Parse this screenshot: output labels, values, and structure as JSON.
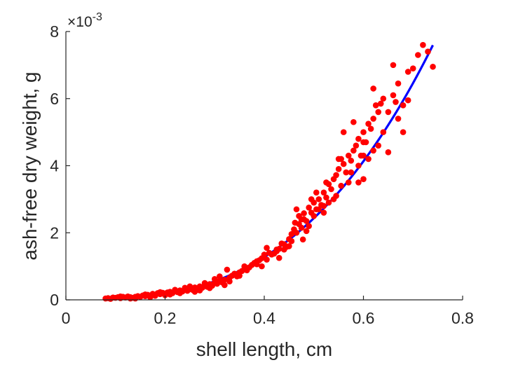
{
  "chart_data": {
    "type": "scatter",
    "title": "",
    "xlabel": "shell length, cm",
    "ylabel": "ash-free dry weight, g",
    "y_multiplier_base": "×10",
    "y_multiplier_exp": "-3",
    "xlim": [
      0,
      0.8
    ],
    "ylim": [
      0,
      0.008
    ],
    "xticks": [
      0,
      0.2,
      0.4,
      0.6,
      0.8
    ],
    "xtick_labels": [
      "0",
      "0.2",
      "0.4",
      "0.6",
      "0.8"
    ],
    "yticks": [
      0,
      0.002,
      0.004,
      0.006,
      0.008
    ],
    "ytick_labels": [
      "0",
      "2",
      "4",
      "6",
      "8"
    ],
    "grid": false,
    "legend": "none",
    "colors": {
      "points": "#ff0000",
      "fit": "#0000ff",
      "axis": "#262626"
    },
    "fit": {
      "type": "power",
      "formula": "y = a * x^b",
      "a": 0.01818,
      "b": 2.9,
      "x_range": [
        0.08,
        0.74
      ]
    },
    "points": [
      [
        0.08,
        4e-05
      ],
      [
        0.085,
        5e-05
      ],
      [
        0.09,
        3e-05
      ],
      [
        0.095,
        7e-05
      ],
      [
        0.1,
        6e-05
      ],
      [
        0.105,
        8e-05
      ],
      [
        0.11,
        5e-05
      ],
      [
        0.115,
        9e-05
      ],
      [
        0.12,
        7e-05
      ],
      [
        0.125,
        0.0001
      ],
      [
        0.13,
        8e-05
      ],
      [
        0.135,
        6e-05
      ],
      [
        0.14,
        4e-05
      ],
      [
        0.145,
        0.00011
      ],
      [
        0.15,
        9e-05
      ],
      [
        0.155,
        0.00013
      ],
      [
        0.16,
        0.00011
      ],
      [
        0.165,
        0.00015
      ],
      [
        0.17,
        0.00012
      ],
      [
        0.175,
        0.00018
      ],
      [
        0.18,
        0.00014
      ],
      [
        0.185,
        0.0002
      ],
      [
        0.19,
        0.00017
      ],
      [
        0.195,
        0.00021
      ],
      [
        0.2,
        0.00019
      ],
      [
        0.205,
        0.00022
      ],
      [
        0.21,
        0.00024
      ],
      [
        0.215,
        0.0002
      ],
      [
        0.22,
        0.00026
      ],
      [
        0.225,
        0.00023
      ],
      [
        0.23,
        0.00028
      ],
      [
        0.235,
        0.00025
      ],
      [
        0.24,
        0.00031
      ],
      [
        0.245,
        0.00027
      ],
      [
        0.25,
        0.00034
      ],
      [
        0.255,
        0.0003
      ],
      [
        0.26,
        0.00037
      ],
      [
        0.265,
        0.00033
      ],
      [
        0.27,
        0.0004
      ],
      [
        0.275,
        0.00036
      ],
      [
        0.28,
        0.00043
      ],
      [
        0.285,
        0.00039
      ],
      [
        0.29,
        0.00047
      ],
      [
        0.295,
        0.00042
      ],
      [
        0.3,
        0.00051
      ],
      [
        0.305,
        0.00048
      ],
      [
        0.31,
        0.00056
      ],
      [
        0.315,
        0.00052
      ],
      [
        0.32,
        0.0006
      ],
      [
        0.325,
        0.0009
      ],
      [
        0.33,
        0.00066
      ],
      [
        0.335,
        0.00072
      ],
      [
        0.34,
        0.00078
      ],
      [
        0.345,
        0.0007
      ],
      [
        0.35,
        0.00082
      ],
      [
        0.355,
        0.00086
      ],
      [
        0.36,
        0.00092
      ],
      [
        0.365,
        0.00088
      ],
      [
        0.37,
        0.00097
      ],
      [
        0.375,
        0.00104
      ],
      [
        0.38,
        0.0011
      ],
      [
        0.385,
        0.00106
      ],
      [
        0.39,
        0.00118
      ],
      [
        0.395,
        0.00124
      ],
      [
        0.4,
        0.00135
      ],
      [
        0.405,
        0.00155
      ],
      [
        0.41,
        0.0014
      ],
      [
        0.42,
        0.00138
      ],
      [
        0.425,
        0.0015
      ],
      [
        0.43,
        0.00152
      ],
      [
        0.44,
        0.00166
      ],
      [
        0.445,
        0.00158
      ],
      [
        0.45,
        0.00181
      ],
      [
        0.455,
        0.00196
      ],
      [
        0.46,
        0.0021
      ],
      [
        0.462,
        0.0023
      ],
      [
        0.465,
        0.002
      ],
      [
        0.47,
        0.00226
      ],
      [
        0.475,
        0.0024
      ],
      [
        0.478,
        0.0018
      ],
      [
        0.48,
        0.00258
      ],
      [
        0.485,
        0.00235
      ],
      [
        0.49,
        0.00275
      ],
      [
        0.495,
        0.0026
      ],
      [
        0.5,
        0.0029
      ],
      [
        0.505,
        0.0027
      ],
      [
        0.51,
        0.003
      ],
      [
        0.515,
        0.00283
      ],
      [
        0.52,
        0.0032
      ],
      [
        0.525,
        0.00305
      ],
      [
        0.53,
        0.00345
      ],
      [
        0.535,
        0.0033
      ],
      [
        0.54,
        0.0036
      ],
      [
        0.545,
        0.00372
      ],
      [
        0.55,
        0.0039
      ],
      [
        0.555,
        0.0034
      ],
      [
        0.56,
        0.00405
      ],
      [
        0.565,
        0.0038
      ],
      [
        0.57,
        0.0043
      ],
      [
        0.575,
        0.00415
      ],
      [
        0.58,
        0.00445
      ],
      [
        0.585,
        0.0046
      ],
      [
        0.59,
        0.0048
      ],
      [
        0.595,
        0.0043
      ],
      [
        0.6,
        0.005
      ],
      [
        0.605,
        0.0047
      ],
      [
        0.61,
        0.00525
      ],
      [
        0.615,
        0.0051
      ],
      [
        0.62,
        0.0054
      ],
      [
        0.625,
        0.0058
      ],
      [
        0.63,
        0.0056
      ],
      [
        0.635,
        0.00585
      ],
      [
        0.64,
        0.006
      ],
      [
        0.65,
        0.0056
      ],
      [
        0.66,
        0.0061
      ],
      [
        0.665,
        0.0059
      ],
      [
        0.67,
        0.00645
      ],
      [
        0.68,
        0.005
      ],
      [
        0.69,
        0.0068
      ],
      [
        0.7,
        0.0069
      ],
      [
        0.71,
        0.0073
      ],
      [
        0.72,
        0.0076
      ],
      [
        0.73,
        0.0074
      ],
      [
        0.74,
        0.00695
      ],
      [
        0.62,
        0.0063
      ],
      [
        0.6,
        0.0047
      ],
      [
        0.575,
        0.0038
      ],
      [
        0.53,
        0.0029
      ],
      [
        0.51,
        0.0027
      ],
      [
        0.49,
        0.0022
      ],
      [
        0.47,
        0.0025
      ],
      [
        0.45,
        0.0016
      ],
      [
        0.43,
        0.00125
      ],
      [
        0.415,
        0.00135
      ],
      [
        0.395,
        0.001
      ],
      [
        0.36,
        0.001
      ],
      [
        0.33,
        0.00055
      ],
      [
        0.31,
        0.0007
      ],
      [
        0.29,
        0.00035
      ],
      [
        0.27,
        0.00028
      ],
      [
        0.25,
        0.0004
      ],
      [
        0.23,
        0.0002
      ],
      [
        0.21,
        0.00016
      ],
      [
        0.19,
        0.00023
      ],
      [
        0.17,
        8e-05
      ],
      [
        0.13,
        4e-05
      ],
      [
        0.11,
        0.0001
      ],
      [
        0.6,
        0.0036
      ],
      [
        0.62,
        0.00445
      ],
      [
        0.64,
        0.005
      ],
      [
        0.66,
        0.007
      ],
      [
        0.68,
        0.0058
      ],
      [
        0.69,
        0.00595
      ],
      [
        0.56,
        0.005
      ],
      [
        0.545,
        0.0031
      ],
      [
        0.52,
        0.0026
      ],
      [
        0.505,
        0.0032
      ],
      [
        0.485,
        0.00205
      ],
      [
        0.465,
        0.0027
      ],
      [
        0.44,
        0.0015
      ],
      [
        0.425,
        0.00145
      ],
      [
        0.405,
        0.0012
      ],
      [
        0.385,
        0.00115
      ],
      [
        0.35,
        0.00072
      ],
      [
        0.32,
        0.00044
      ],
      [
        0.3,
        0.00062
      ],
      [
        0.28,
        0.0005
      ],
      [
        0.26,
        0.00024
      ],
      [
        0.24,
        0.00036
      ],
      [
        0.22,
        0.0003
      ],
      [
        0.2,
        0.00014
      ],
      [
        0.18,
        0.00012
      ],
      [
        0.16,
        0.00016
      ],
      [
        0.14,
        9e-05
      ],
      [
        0.59,
        0.004
      ],
      [
        0.58,
        0.0053
      ],
      [
        0.57,
        0.0035
      ],
      [
        0.555,
        0.0042
      ],
      [
        0.54,
        0.003
      ],
      [
        0.525,
        0.0035
      ],
      [
        0.495,
        0.003
      ],
      [
        0.475,
        0.00215
      ],
      [
        0.455,
        0.00175
      ],
      [
        0.435,
        0.00168
      ],
      [
        0.61,
        0.0042
      ],
      [
        0.63,
        0.0046
      ],
      [
        0.65,
        0.0044
      ],
      [
        0.67,
        0.0054
      ],
      [
        0.6,
        0.0043
      ],
      [
        0.59,
        0.0035
      ],
      [
        0.55,
        0.0042
      ],
      [
        0.52,
        0.0028
      ],
      [
        0.5,
        0.0025
      ],
      [
        0.48,
        0.0024
      ]
    ]
  }
}
